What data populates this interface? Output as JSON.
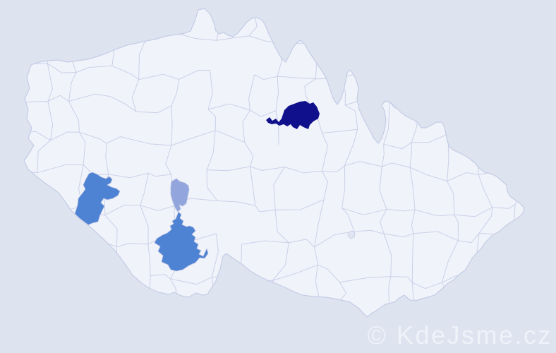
{
  "watermark": {
    "text": "© KdeJsme.cz",
    "color": "#eef2f9"
  },
  "map": {
    "colors": {
      "background": "#dde4ef",
      "land": "#f1f3fa",
      "district_border": "#c9d0e9",
      "country_outline": "#c4cce6"
    },
    "highlighted_districts": [
      {
        "position": "north-east",
        "shade": "dark",
        "color": "#10108c"
      },
      {
        "position": "south-west",
        "shade": "medium",
        "color": "#4e82d2"
      },
      {
        "position": "central-south-small",
        "shade": "light",
        "color": "#92a6dd"
      },
      {
        "position": "south",
        "shade": "medium",
        "color": "#4e82d2"
      },
      {
        "position": "central-east-tiny",
        "shade": "faint",
        "color": "#e1e5f2"
      }
    ]
  }
}
